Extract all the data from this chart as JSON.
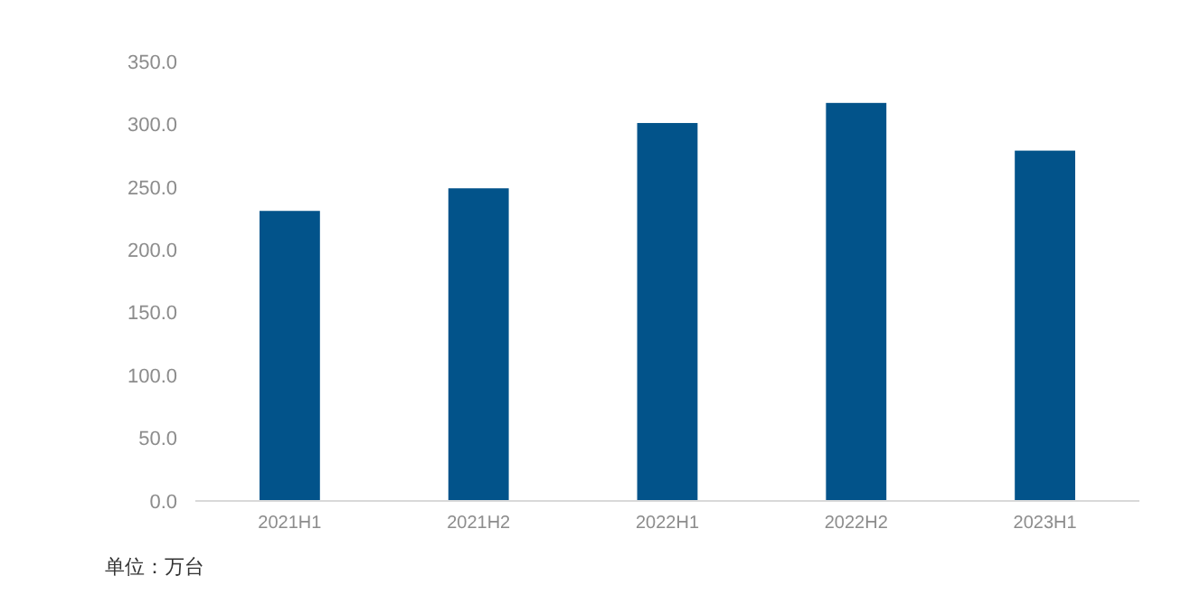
{
  "chart_data": {
    "type": "bar",
    "categories": [
      "2021H1",
      "2021H2",
      "2022H1",
      "2022H2",
      "2023H1"
    ],
    "values": [
      231,
      249,
      301,
      317,
      279
    ],
    "color": "#02538a",
    "ylim": [
      0,
      350
    ],
    "yticks": [
      {
        "value": 0,
        "label": "0.0"
      },
      {
        "value": 50,
        "label": "50.0"
      },
      {
        "value": 100,
        "label": "100.0"
      },
      {
        "value": 150,
        "label": "150.0"
      },
      {
        "value": 200,
        "label": "200.0"
      },
      {
        "value": 250,
        "label": "250.0"
      },
      {
        "value": 300,
        "label": "300.0"
      },
      {
        "value": 350,
        "label": "350.0"
      }
    ],
    "grid": false,
    "annotations": [
      "单位：万台"
    ]
  }
}
